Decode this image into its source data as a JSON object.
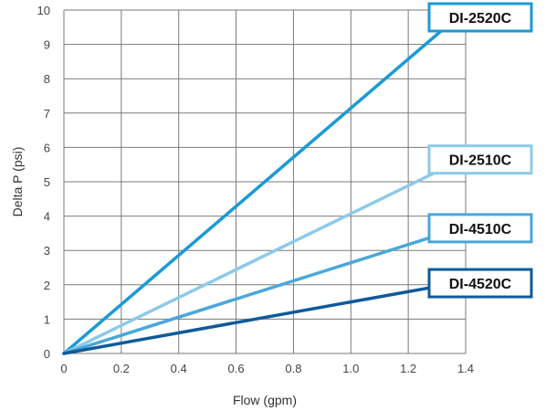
{
  "chart_data": {
    "type": "line",
    "xlabel": "Flow (gpm)",
    "ylabel": "Delta P (psi)",
    "xlim": [
      0,
      1.4
    ],
    "ylim": [
      0,
      10
    ],
    "x_ticks": [
      "0",
      "0.2",
      "0.4",
      "0.6",
      "0.8",
      "1.0",
      "1.2",
      "1.4"
    ],
    "y_ticks": [
      "0",
      "1",
      "2",
      "3",
      "4",
      "5",
      "6",
      "7",
      "8",
      "9",
      "10"
    ],
    "grid": true,
    "series": [
      {
        "name": "DI-2520C",
        "color": "#1a9ad6",
        "x": [
          0,
          1.4
        ],
        "y": [
          0,
          10
        ]
      },
      {
        "name": "DI-2510C",
        "color": "#8ecae8",
        "x": [
          0,
          1.4
        ],
        "y": [
          0,
          5.7
        ]
      },
      {
        "name": "DI-4510C",
        "color": "#4aa7da",
        "x": [
          0,
          1.4
        ],
        "y": [
          0,
          3.7
        ]
      },
      {
        "name": "DI-4520C",
        "color": "#0e5a9a",
        "x": [
          0,
          1.4
        ],
        "y": [
          0,
          2.1
        ]
      }
    ]
  }
}
